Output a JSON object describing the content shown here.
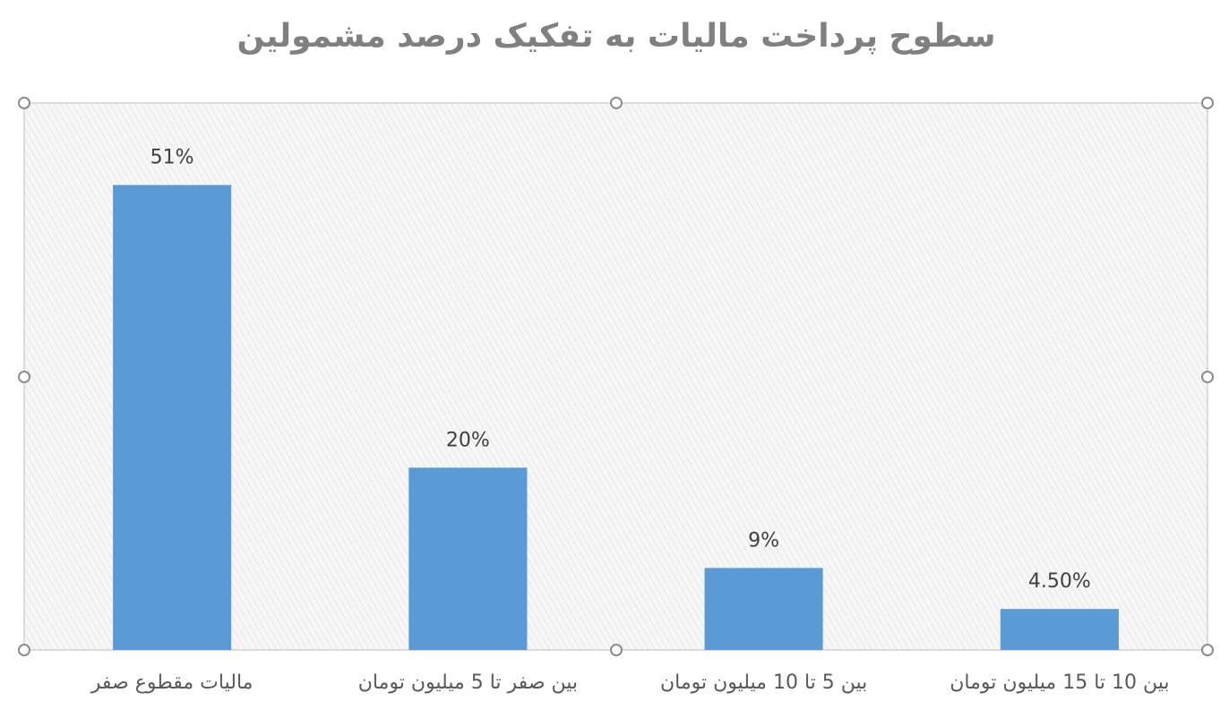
{
  "chart_data": {
    "type": "bar",
    "title": "سطوح پرداخت مالیات به تفکیک درصد مشمولین",
    "categories": [
      "مالیات مقطوع صفر",
      "بین صفر تا 5 میلیون تومان",
      "بین 5 تا 10 میلیون تومان",
      "بین 10 تا 15 میلیون تومان"
    ],
    "values": [
      51,
      20,
      9,
      4.5
    ],
    "value_labels": [
      "51%",
      "20%",
      "9%",
      "4.50%"
    ],
    "color": "#5b9bd5",
    "ylim": [
      0,
      60
    ]
  }
}
